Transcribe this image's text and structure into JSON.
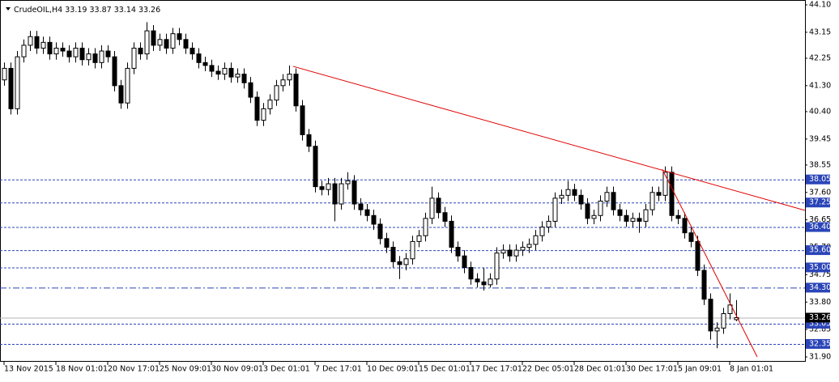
{
  "chart_data": {
    "type": "candlestick",
    "title": "CrudeOIL,H4",
    "categories": [
      "13 Nov 2015",
      null,
      null,
      null,
      null,
      null,
      null,
      null,
      "18 Nov 01:01",
      null,
      null,
      null,
      null,
      null,
      null,
      null,
      "20 Nov 17:01",
      null,
      null,
      null,
      null,
      null,
      null,
      null,
      "25 Nov 09:01",
      null,
      null,
      null,
      null,
      null,
      null,
      null,
      "30 Nov 09:01",
      null,
      null,
      null,
      null,
      null,
      null,
      null,
      "3 Dec 01:01",
      null,
      null,
      null,
      null,
      null,
      null,
      null,
      "7 Dec 17:01",
      null,
      null,
      null,
      null,
      null,
      null,
      null,
      "10 Dec 09:01",
      null,
      null,
      null,
      null,
      null,
      null,
      null,
      "15 Dec 01:01",
      null,
      null,
      null,
      null,
      null,
      null,
      null,
      "17 Dec 17:01",
      null,
      null,
      null,
      null,
      null,
      null,
      null,
      "22 Dec 05:01",
      null,
      null,
      null,
      null,
      null,
      null,
      null,
      "28 Dec 01:01",
      null,
      null,
      null,
      null,
      null,
      null,
      null,
      "30 Dec 17:01",
      null,
      null,
      null,
      null,
      null,
      null,
      null,
      "5 Jan 09:01",
      null,
      null,
      null,
      null,
      null,
      null,
      null,
      "8 Jan 01:01",
      null
    ],
    "open": [
      41.5,
      41.9,
      40.5,
      42.3,
      42.7,
      43.0,
      42.6,
      42.8,
      42.4,
      42.6,
      42.5,
      42.3,
      42.6,
      42.2,
      42.4,
      42.1,
      42.5,
      42.3,
      41.3,
      40.7,
      41.9,
      42.6,
      42.4,
      43.2,
      42.7,
      42.9,
      42.6,
      43.1,
      42.9,
      42.6,
      42.4,
      42.1,
      42.0,
      41.8,
      41.7,
      41.9,
      41.6,
      41.7,
      41.4,
      40.9,
      40.1,
      40.5,
      40.8,
      41.3,
      41.5,
      41.7,
      40.6,
      39.6,
      39.2,
      37.8,
      37.7,
      37.9,
      37.2,
      37.9,
      38.0,
      37.2,
      37.0,
      36.8,
      36.5,
      36.0,
      35.7,
      35.2,
      35.1,
      35.3,
      35.9,
      36.1,
      36.7,
      37.4,
      36.9,
      36.6,
      35.7,
      35.4,
      35.0,
      34.6,
      34.5,
      34.4,
      34.6,
      35.5,
      35.6,
      35.4,
      35.6,
      35.7,
      35.8,
      36.1,
      36.4,
      36.6,
      37.4,
      37.5,
      37.7,
      37.5,
      37.2,
      36.7,
      36.8,
      37.3,
      37.6,
      37.0,
      36.8,
      36.6,
      36.7,
      36.6,
      37.0,
      37.6,
      37.5,
      38.3,
      36.8,
      36.7,
      36.2,
      35.9,
      34.9,
      33.9,
      32.8,
      32.9,
      33.4,
      33.19
    ],
    "high": [
      42.1,
      42.1,
      42.5,
      42.9,
      43.2,
      43.2,
      43.0,
      43.0,
      42.8,
      42.8,
      42.7,
      42.8,
      42.8,
      42.6,
      42.6,
      42.7,
      42.7,
      42.5,
      41.5,
      42.1,
      42.8,
      42.8,
      43.5,
      43.4,
      43.1,
      43.1,
      43.3,
      43.3,
      43.1,
      42.8,
      42.6,
      42.3,
      42.2,
      42.0,
      42.1,
      42.1,
      41.9,
      41.9,
      41.6,
      41.1,
      40.7,
      41.0,
      41.5,
      41.7,
      42.0,
      41.9,
      40.8,
      39.8,
      39.4,
      38.0,
      38.1,
      38.1,
      38.1,
      38.3,
      38.2,
      37.4,
      37.2,
      37.0,
      36.7,
      36.2,
      35.9,
      35.4,
      35.5,
      36.1,
      36.3,
      36.9,
      37.8,
      37.6,
      37.1,
      36.8,
      35.9,
      35.6,
      35.2,
      34.8,
      35.0,
      34.8,
      35.7,
      35.8,
      35.8,
      35.8,
      35.9,
      36.0,
      36.3,
      36.6,
      36.8,
      37.6,
      37.7,
      38.0,
      37.9,
      37.7,
      37.4,
      37.0,
      37.5,
      37.8,
      37.8,
      37.2,
      37.0,
      36.9,
      36.9,
      37.2,
      37.8,
      37.8,
      38.5,
      38.5,
      37.0,
      36.9,
      36.4,
      36.1,
      35.1,
      34.1,
      33.1,
      33.6,
      34.1,
      33.87
    ],
    "low": [
      41.3,
      40.3,
      40.3,
      42.1,
      42.5,
      42.4,
      42.4,
      42.2,
      42.2,
      42.3,
      42.1,
      42.1,
      42.0,
      42.0,
      41.9,
      41.9,
      42.1,
      41.1,
      40.5,
      40.5,
      41.7,
      42.2,
      42.2,
      42.5,
      42.5,
      42.4,
      42.4,
      42.7,
      42.4,
      42.2,
      41.9,
      41.8,
      41.6,
      41.5,
      41.5,
      41.4,
      41.4,
      41.2,
      40.7,
      39.9,
      39.9,
      40.3,
      40.6,
      41.1,
      41.3,
      40.4,
      39.4,
      39.0,
      37.6,
      37.5,
      37.5,
      36.6,
      37.0,
      37.7,
      37.0,
      36.8,
      36.6,
      36.3,
      35.8,
      35.5,
      35.0,
      34.6,
      34.9,
      35.1,
      35.7,
      35.9,
      36.5,
      36.7,
      36.4,
      35.5,
      35.2,
      34.8,
      34.4,
      34.3,
      34.2,
      34.3,
      34.4,
      35.3,
      35.2,
      35.2,
      35.4,
      35.5,
      35.6,
      35.9,
      36.2,
      36.4,
      37.2,
      37.3,
      37.3,
      37.0,
      36.5,
      36.5,
      36.6,
      37.1,
      36.8,
      36.6,
      36.4,
      36.4,
      36.2,
      36.4,
      36.8,
      37.3,
      37.3,
      36.6,
      36.5,
      36.0,
      35.7,
      34.7,
      33.7,
      32.5,
      32.2,
      32.7,
      33.2,
      33.14
    ],
    "close": [
      41.9,
      40.5,
      42.3,
      42.7,
      43.0,
      42.6,
      42.8,
      42.4,
      42.6,
      42.5,
      42.3,
      42.6,
      42.2,
      42.4,
      42.1,
      42.5,
      42.3,
      41.3,
      40.7,
      41.9,
      42.6,
      42.4,
      43.2,
      42.7,
      42.9,
      42.6,
      43.1,
      42.9,
      42.6,
      42.4,
      42.1,
      42.0,
      41.8,
      41.7,
      41.9,
      41.6,
      41.7,
      41.4,
      40.9,
      40.1,
      40.5,
      40.8,
      41.3,
      41.5,
      41.7,
      40.6,
      39.6,
      39.2,
      37.8,
      37.7,
      37.9,
      37.2,
      37.9,
      38.0,
      37.2,
      37.0,
      36.8,
      36.5,
      36.0,
      35.7,
      35.2,
      35.1,
      35.3,
      35.9,
      36.1,
      36.7,
      37.4,
      36.9,
      36.6,
      35.7,
      35.4,
      35.0,
      34.6,
      34.5,
      34.4,
      34.6,
      35.5,
      35.6,
      35.4,
      35.6,
      35.7,
      35.8,
      36.1,
      36.4,
      36.6,
      37.4,
      37.5,
      37.7,
      37.5,
      37.2,
      36.7,
      36.8,
      37.3,
      37.6,
      37.0,
      36.8,
      36.6,
      36.7,
      36.6,
      37.0,
      37.6,
      37.5,
      38.3,
      36.8,
      36.7,
      36.2,
      35.9,
      34.9,
      33.9,
      32.8,
      32.9,
      33.4,
      33.7,
      33.26
    ],
    "up_color": "#ffffff",
    "down_color": "#000000",
    "ylim": [
      31.9,
      44.1
    ],
    "yticks": [
      {
        "value": 44.1,
        "label": "44.10"
      },
      43.15,
      42.25,
      {
        "value": 41.3,
        "label": "41.30"
      },
      {
        "value": 40.4,
        "label": "40.40"
      },
      39.45,
      38.55,
      {
        "value": 37.6,
        "label": "37.60"
      },
      36.65,
      {
        "value": 35.7,
        "label": "35.70"
      },
      34.75,
      {
        "value": 33.8,
        "label": "33.80"
      },
      32.85,
      {
        "value": 31.9,
        "label": "31.90"
      }
    ],
    "grid": false,
    "levels": [
      38.05,
      37.25,
      {
        "value": 36.4,
        "label": "36.40"
      },
      {
        "value": 35.6,
        "label": "35.60"
      },
      {
        "value": 35,
        "label": "35.00"
      },
      {
        "value": 34.3,
        "label": "34.30"
      },
      33.05,
      32.35
    ],
    "level_styles": [
      "dashed",
      "dashed",
      "dashed",
      "dashed",
      "dashed",
      "dashdot",
      "dashed",
      "dashed"
    ],
    "level_color": "#2b45b8",
    "price_line_color": "#b4b4b4",
    "trendlines": [
      {
        "color": "#e00000",
        "x": [
          44.6,
          123.6
        ],
        "y": [
          41.97,
          36.98
        ]
      },
      {
        "color": "#e00000",
        "x": [
          101.6,
          116.25
        ],
        "y": [
          38.4,
          31.9
        ]
      }
    ]
  }
}
